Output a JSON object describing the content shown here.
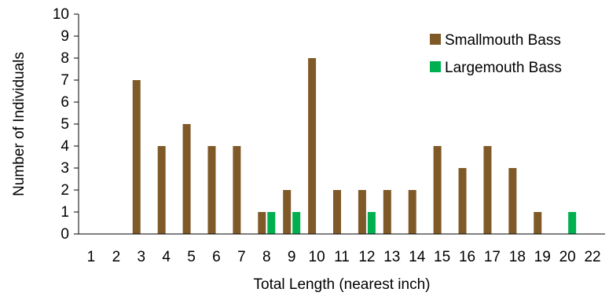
{
  "chart_data": {
    "type": "bar",
    "title": "",
    "xlabel": "Total Length (nearest inch)",
    "ylabel": "Number of Individuals",
    "ylim": [
      0,
      10
    ],
    "yticks": [
      "0",
      "1",
      "2",
      "3",
      "4",
      "5",
      "6",
      "7",
      "8",
      "9",
      "10"
    ],
    "categories": [
      "1",
      "2",
      "3",
      "4",
      "5",
      "6",
      "7",
      "8",
      "9",
      "10",
      "11",
      "12",
      "13",
      "14",
      "15",
      "16",
      "17",
      "18",
      "19",
      "20",
      "22"
    ],
    "series": [
      {
        "name": "Smallmouth Bass",
        "color": "#7F5A28",
        "values": [
          0,
          0,
          7,
          4,
          5,
          4,
          4,
          1,
          2,
          8,
          2,
          2,
          2,
          2,
          4,
          3,
          4,
          3,
          1,
          0,
          0
        ]
      },
      {
        "name": "Largemouth Bass",
        "color": "#00B050",
        "values": [
          0,
          0,
          0,
          0,
          0,
          0,
          0,
          1,
          1,
          0,
          0,
          1,
          0,
          0,
          0,
          0,
          0,
          0,
          0,
          1,
          0
        ]
      }
    ],
    "grid": false,
    "legend_position": "top-right"
  }
}
